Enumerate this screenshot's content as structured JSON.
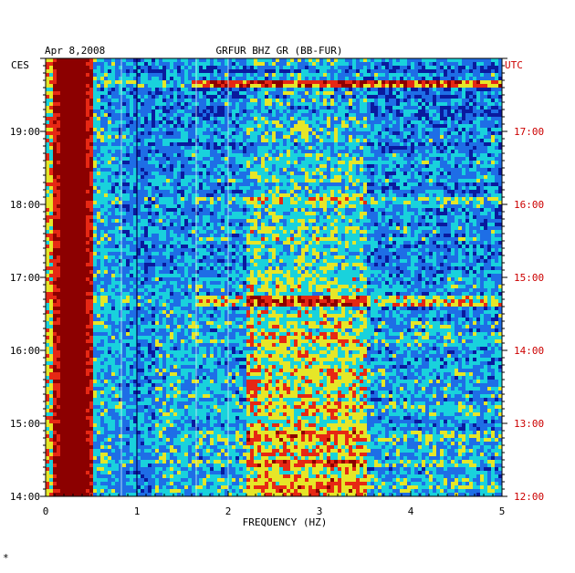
{
  "chart_data": {
    "type": "heatmap",
    "date_label": "Apr 8,2008",
    "title": "GRFUR BHZ GR (BB-FUR)",
    "xlabel": "FREQUENCY (HZ)",
    "left_axis_label": "CES",
    "right_axis_label": "UTC",
    "xlim": [
      0,
      5
    ],
    "x_ticks": [
      "0",
      "1",
      "2",
      "3",
      "4",
      "5"
    ],
    "left_time_ticks": [
      "14:00",
      "15:00",
      "16:00",
      "17:00",
      "18:00",
      "19:00"
    ],
    "right_time_ticks": [
      "12:00",
      "13:00",
      "14:00",
      "15:00",
      "16:00",
      "17:00"
    ],
    "grid": false,
    "colors": {
      "low": "#0a1a9e",
      "mid_low": "#1e6ee6",
      "mid": "#19d2dc",
      "mid_high": "#e6e628",
      "high": "#e62814",
      "max": "#8c0000",
      "frame": "#000000",
      "utc_text": "#cc0000"
    },
    "features": {
      "microseism_peak_hz": [
        0.1,
        0.5
      ],
      "persistent_lines_hz": [
        0.83,
        1.0,
        1.65,
        2.0
      ],
      "strong_energy_band_hz": [
        2.2,
        3.5
      ]
    }
  },
  "footer_mark": "*"
}
